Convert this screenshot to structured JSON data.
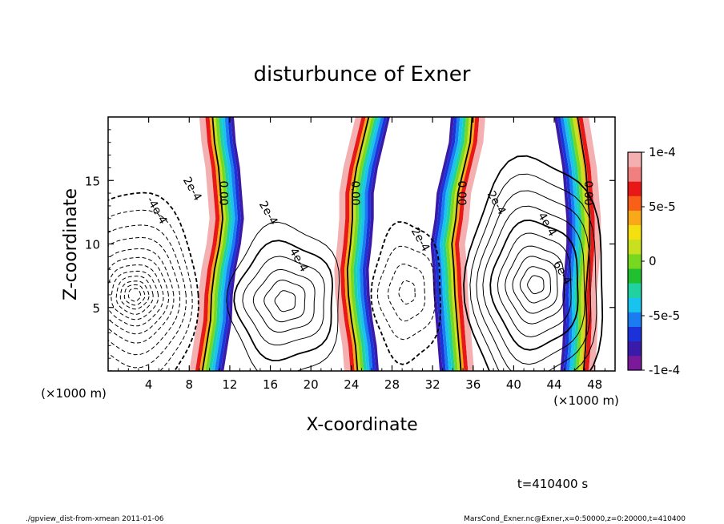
{
  "chart_data": {
    "type": "heatmap",
    "title": "disturbunce of Exner",
    "xlabel": "X-coordinate",
    "ylabel": "Z-coordinate",
    "x_unit": "(×1000 m)",
    "x_unit_right": "(×1000 m)",
    "xlim": [
      0,
      50
    ],
    "ylim": [
      0,
      20
    ],
    "x_ticks": [
      4,
      8,
      12,
      16,
      20,
      24,
      28,
      32,
      36,
      40,
      44,
      48
    ],
    "y_ticks": [
      5,
      10,
      15
    ],
    "colorbar": {
      "range": [
        -0.0001,
        0.0001
      ],
      "ticks": [
        {
          "value": 0.0001,
          "label": "1e-4"
        },
        {
          "value": 5e-05,
          "label": "5e-5"
        },
        {
          "value": 0,
          "label": "0"
        },
        {
          "value": -5e-05,
          "label": "-5e-5"
        },
        {
          "value": -0.0001,
          "label": "-1e-4"
        }
      ],
      "colors": [
        "#7a1a9a",
        "#3a1aa8",
        "#1a32d8",
        "#1a7cf0",
        "#18c4ee",
        "#20d2a0",
        "#20c030",
        "#78d820",
        "#c8e020",
        "#f4e010",
        "#f8a818",
        "#f86018",
        "#e81818",
        "#f08080",
        "#f4b0b0"
      ]
    },
    "plumes": [
      {
        "x_center": 11,
        "label": "0.00"
      },
      {
        "x_center": 24,
        "label": "0.00"
      },
      {
        "x_center": 34.5,
        "label": "0.00"
      },
      {
        "x_center": 47,
        "label": "0.00"
      }
    ],
    "contour_labels": [
      {
        "x": 8,
        "z": 14.2,
        "text": "2e-4"
      },
      {
        "x": 4.5,
        "z": 12.5,
        "text": "-4e-4"
      },
      {
        "x": 15.5,
        "z": 12.3,
        "text": "2e-4"
      },
      {
        "x": 18.5,
        "z": 8.6,
        "text": "4e-4"
      },
      {
        "x": 30.5,
        "z": 10.2,
        "text": "2e-4"
      },
      {
        "x": 38,
        "z": 13.1,
        "text": "2e-4"
      },
      {
        "x": 43,
        "z": 11.4,
        "text": "4e-4"
      },
      {
        "x": 44.5,
        "z": 7.6,
        "text": "6e-4"
      }
    ],
    "time_label": "t=410400 s"
  },
  "footer": {
    "left": "./gpview_dist-from-xmean  2011-01-06",
    "right": "MarsCond_Exner.nc@Exner,x=0:50000,z=0:20000,t=410400"
  }
}
